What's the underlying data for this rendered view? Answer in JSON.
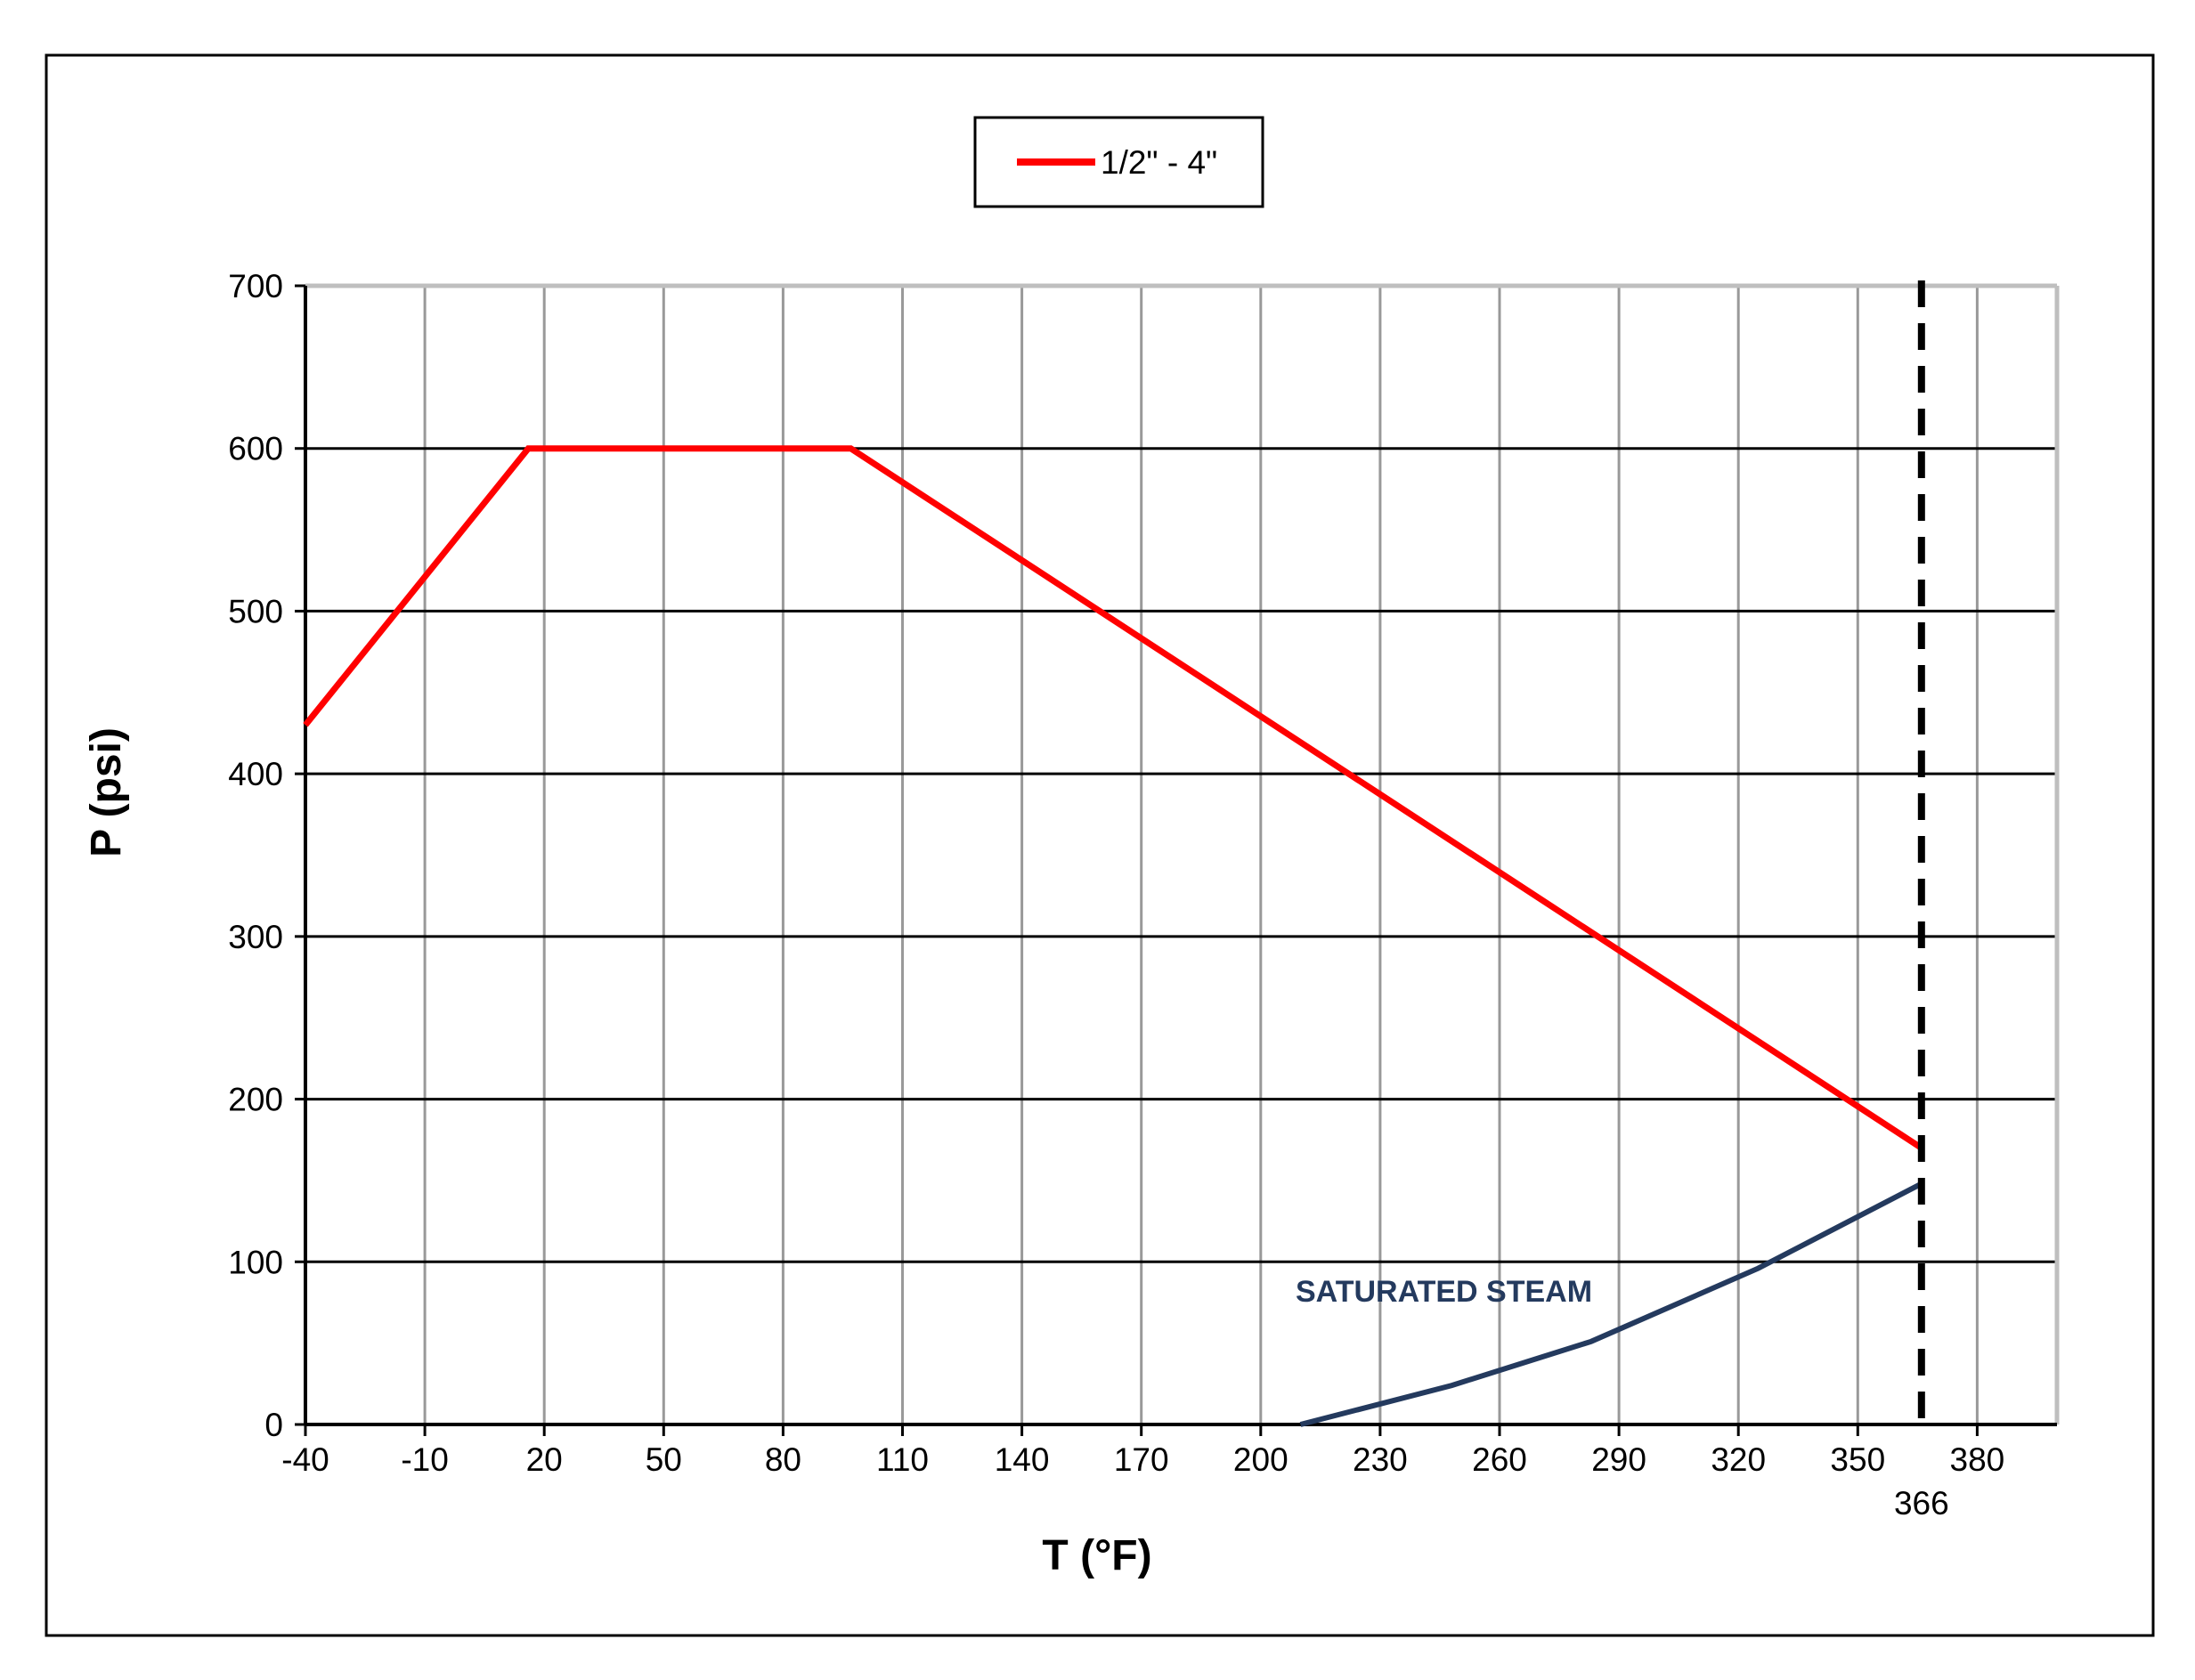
{
  "chart_data": {
    "type": "line",
    "xlabel": "T (°F)",
    "ylabel": "P (psi)",
    "xlim": [
      -40,
      400
    ],
    "ylim": [
      0,
      700
    ],
    "x_ticks": [
      -40,
      -10,
      20,
      50,
      80,
      110,
      140,
      170,
      200,
      230,
      260,
      290,
      320,
      350,
      380
    ],
    "y_ticks": [
      0,
      100,
      200,
      300,
      400,
      500,
      600,
      700
    ],
    "grid": true,
    "legend_position": "top-center",
    "series": [
      {
        "name": "1/2\" - 4\"",
        "color": "#ff0000",
        "points": [
          [
            -40,
            430
          ],
          [
            16,
            600
          ],
          [
            97,
            600
          ],
          [
            366,
            170
          ]
        ]
      },
      {
        "color": "#243a5e",
        "points": [
          [
            210,
            0
          ],
          [
            248,
            24
          ],
          [
            283,
            51
          ],
          [
            325,
            96
          ],
          [
            366,
            148
          ]
        ]
      }
    ],
    "annotations": [
      {
        "text": "SATURATED STEAM",
        "x": 210,
        "y": 80,
        "color": "#243a5e"
      },
      {
        "text": "366",
        "x": 366,
        "type": "vertical-dashed-line",
        "color": "#000000"
      }
    ]
  }
}
